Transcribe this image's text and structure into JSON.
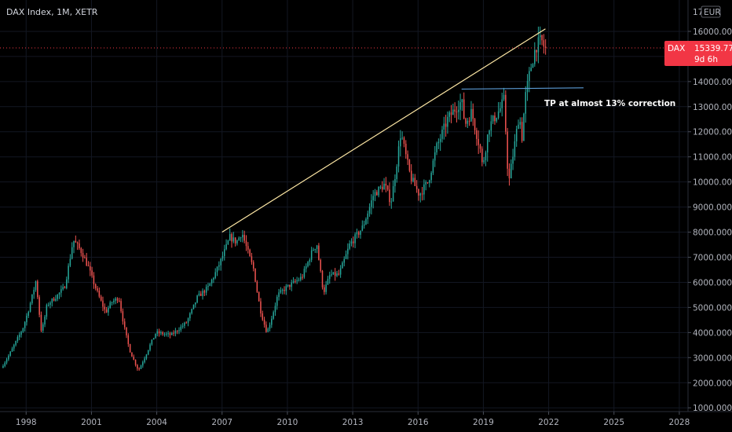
{
  "chart_data": {
    "type": "candlestick",
    "title": "DAX Index, 1M, XETR",
    "currency": "EUR",
    "x_ticks": [
      "1998",
      "2001",
      "2004",
      "2007",
      "2010",
      "2013",
      "2016",
      "2019",
      "2022",
      "2025",
      "2028"
    ],
    "y_ticks": [
      "1000.000",
      "2000.000",
      "3000.000",
      "4000.000",
      "5000.000",
      "6000.000",
      "7000.000",
      "8000.000",
      "9000.000",
      "10000.000",
      "11000.000",
      "12000.000",
      "13000.000",
      "14000.000",
      "15000.000",
      "16000.000"
    ],
    "y_top_label": "17",
    "xlim": [
      1996.8,
      2028.4
    ],
    "ylim": [
      850,
      17250
    ],
    "last_price": {
      "symbol": "DAX",
      "value": "15339.770",
      "countdown": "9d 6h",
      "numeric": 15339.77
    },
    "annotation": "TP at almost 13% correction",
    "trendline": {
      "x": [
        2007.0,
        2021.85
      ],
      "y": [
        8000,
        16100
      ]
    },
    "support_line": {
      "x": [
        2018.0,
        2023.6
      ],
      "y": [
        13700,
        13750
      ]
    },
    "colors": {
      "up": "#26a69a",
      "down": "#ef5350",
      "trend": "#ffe9a6",
      "support": "#5b9bd5",
      "badge": "#f23645",
      "price_line": "#f23645"
    },
    "anchors": [
      [
        1996.9,
        2600
      ],
      [
        1997.55,
        3600
      ],
      [
        1997.9,
        4200
      ],
      [
        1998.5,
        6100
      ],
      [
        1998.75,
        4000
      ],
      [
        1999.0,
        5100
      ],
      [
        1999.5,
        5500
      ],
      [
        1999.8,
        5800
      ],
      [
        2000.2,
        7700
      ],
      [
        2000.6,
        7200
      ],
      [
        2000.9,
        6600
      ],
      [
        2001.7,
        4800
      ],
      [
        2001.95,
        5200
      ],
      [
        2002.3,
        5400
      ],
      [
        2002.8,
        3300
      ],
      [
        2003.2,
        2500
      ],
      [
        2003.7,
        3450
      ],
      [
        2004.0,
        4000
      ],
      [
        2004.7,
        3900
      ],
      [
        2005.4,
        4400
      ],
      [
        2005.9,
        5400
      ],
      [
        2006.4,
        5800
      ],
      [
        2006.8,
        6500
      ],
      [
        2007.4,
        7800
      ],
      [
        2007.7,
        7600
      ],
      [
        2007.95,
        8000
      ],
      [
        2008.5,
        6500
      ],
      [
        2008.8,
        4900
      ],
      [
        2009.1,
        4000
      ],
      [
        2009.6,
        5500
      ],
      [
        2010.0,
        5800
      ],
      [
        2010.7,
        6200
      ],
      [
        2011.2,
        7300
      ],
      [
        2011.4,
        7500
      ],
      [
        2011.7,
        5600
      ],
      [
        2012.0,
        6300
      ],
      [
        2012.4,
        6300
      ],
      [
        2012.9,
        7500
      ],
      [
        2013.5,
        8200
      ],
      [
        2014.0,
        9500
      ],
      [
        2014.5,
        9900
      ],
      [
        2014.8,
        9200
      ],
      [
        2015.25,
        12000
      ],
      [
        2015.7,
        10200
      ],
      [
        2016.1,
        9500
      ],
      [
        2016.5,
        10000
      ],
      [
        2016.9,
        11400
      ],
      [
        2017.4,
        12500
      ],
      [
        2017.9,
        13100
      ],
      [
        2018.05,
        13200
      ],
      [
        2018.2,
        12300
      ],
      [
        2018.5,
        12800
      ],
      [
        2018.9,
        11300
      ],
      [
        2019.0,
        10600
      ],
      [
        2019.3,
        12200
      ],
      [
        2019.8,
        12900
      ],
      [
        2020.0,
        13300
      ],
      [
        2020.2,
        9900
      ],
      [
        2020.35,
        10800
      ],
      [
        2020.7,
        12800
      ],
      [
        2020.8,
        11600
      ],
      [
        2020.95,
        13300
      ],
      [
        2021.2,
        14500
      ],
      [
        2021.45,
        15400
      ],
      [
        2021.7,
        15650
      ],
      [
        2021.85,
        15339.77
      ]
    ]
  }
}
